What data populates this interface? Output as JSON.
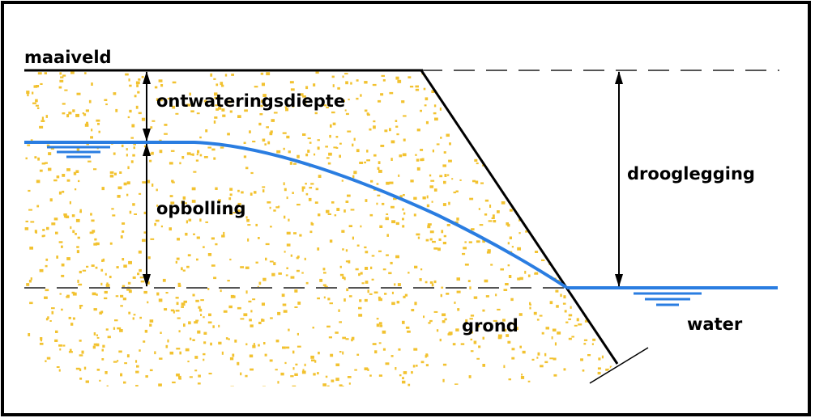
{
  "labels": {
    "maaiveld": "maaiveld",
    "ontwateringsdiepte": "ontwateringsdiepte",
    "opbolling": "opbolling",
    "drooglegging": "drooglegging",
    "grond": "grond",
    "water": "water"
  },
  "colors": {
    "frame": "#000000",
    "soil_dots": "#f2c230",
    "water_line": "#2a7de1",
    "line": "#000000",
    "dashed": "#555555"
  }
}
